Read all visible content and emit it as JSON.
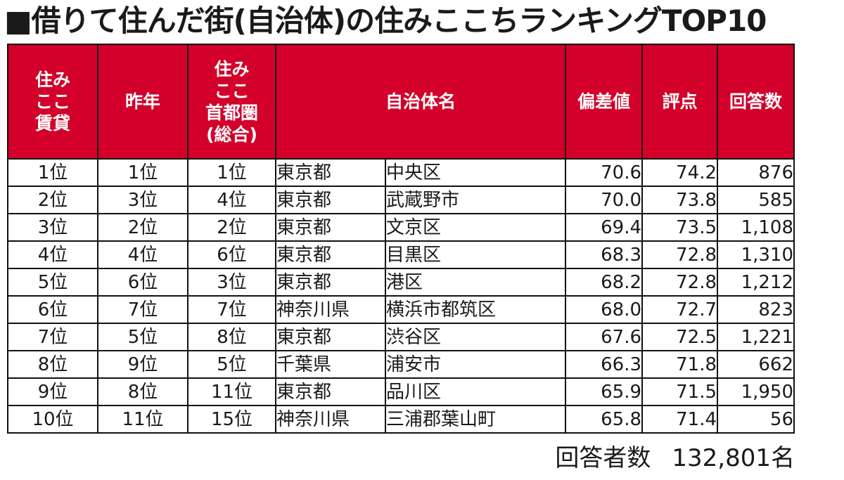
{
  "title": "■借りて住んだ街(自治体)の住みここちランキングTOP10",
  "headers": {
    "rank_rental": [
      "住み",
      "ここ",
      "賃貸"
    ],
    "last_year": "昨年",
    "rank_metro": [
      "住み",
      "ここ",
      "首都圏",
      "(総合)"
    ],
    "municipality": "自治体名",
    "deviation": "偏差値",
    "score": "評点",
    "responses": "回答数"
  },
  "rows": [
    {
      "rank": "1位",
      "last_year": "1位",
      "metro": "1位",
      "pref": "東京都",
      "city": "中央区",
      "deviation": "70.6",
      "score": "74.2",
      "responses": "876"
    },
    {
      "rank": "2位",
      "last_year": "3位",
      "metro": "4位",
      "pref": "東京都",
      "city": "武蔵野市",
      "deviation": "70.0",
      "score": "73.8",
      "responses": "585"
    },
    {
      "rank": "3位",
      "last_year": "2位",
      "metro": "2位",
      "pref": "東京都",
      "city": "文京区",
      "deviation": "69.4",
      "score": "73.5",
      "responses": "1,108"
    },
    {
      "rank": "4位",
      "last_year": "4位",
      "metro": "6位",
      "pref": "東京都",
      "city": "目黒区",
      "deviation": "68.3",
      "score": "72.8",
      "responses": "1,310"
    },
    {
      "rank": "5位",
      "last_year": "6位",
      "metro": "3位",
      "pref": "東京都",
      "city": "港区",
      "deviation": "68.2",
      "score": "72.8",
      "responses": "1,212"
    },
    {
      "rank": "6位",
      "last_year": "7位",
      "metro": "7位",
      "pref": "神奈川県",
      "city": "横浜市都筑区",
      "deviation": "68.0",
      "score": "72.7",
      "responses": "823"
    },
    {
      "rank": "7位",
      "last_year": "5位",
      "metro": "8位",
      "pref": "東京都",
      "city": "渋谷区",
      "deviation": "67.6",
      "score": "72.5",
      "responses": "1,221"
    },
    {
      "rank": "8位",
      "last_year": "9位",
      "metro": "5位",
      "pref": "千葉県",
      "city": "浦安市",
      "deviation": "66.3",
      "score": "71.8",
      "responses": "662"
    },
    {
      "rank": "9位",
      "last_year": "8位",
      "metro": "11位",
      "pref": "東京都",
      "city": "品川区",
      "deviation": "65.9",
      "score": "71.5",
      "responses": "1,950"
    },
    {
      "rank": "10位",
      "last_year": "11位",
      "metro": "15位",
      "pref": "神奈川県",
      "city": "三浦郡葉山町",
      "deviation": "65.8",
      "score": "71.4",
      "responses": "56"
    }
  ],
  "footer": {
    "label": "回答者数",
    "value": "132,801名"
  },
  "colors": {
    "header_bg": "#d2002a",
    "header_text": "#ffffff",
    "border": "#111111"
  }
}
